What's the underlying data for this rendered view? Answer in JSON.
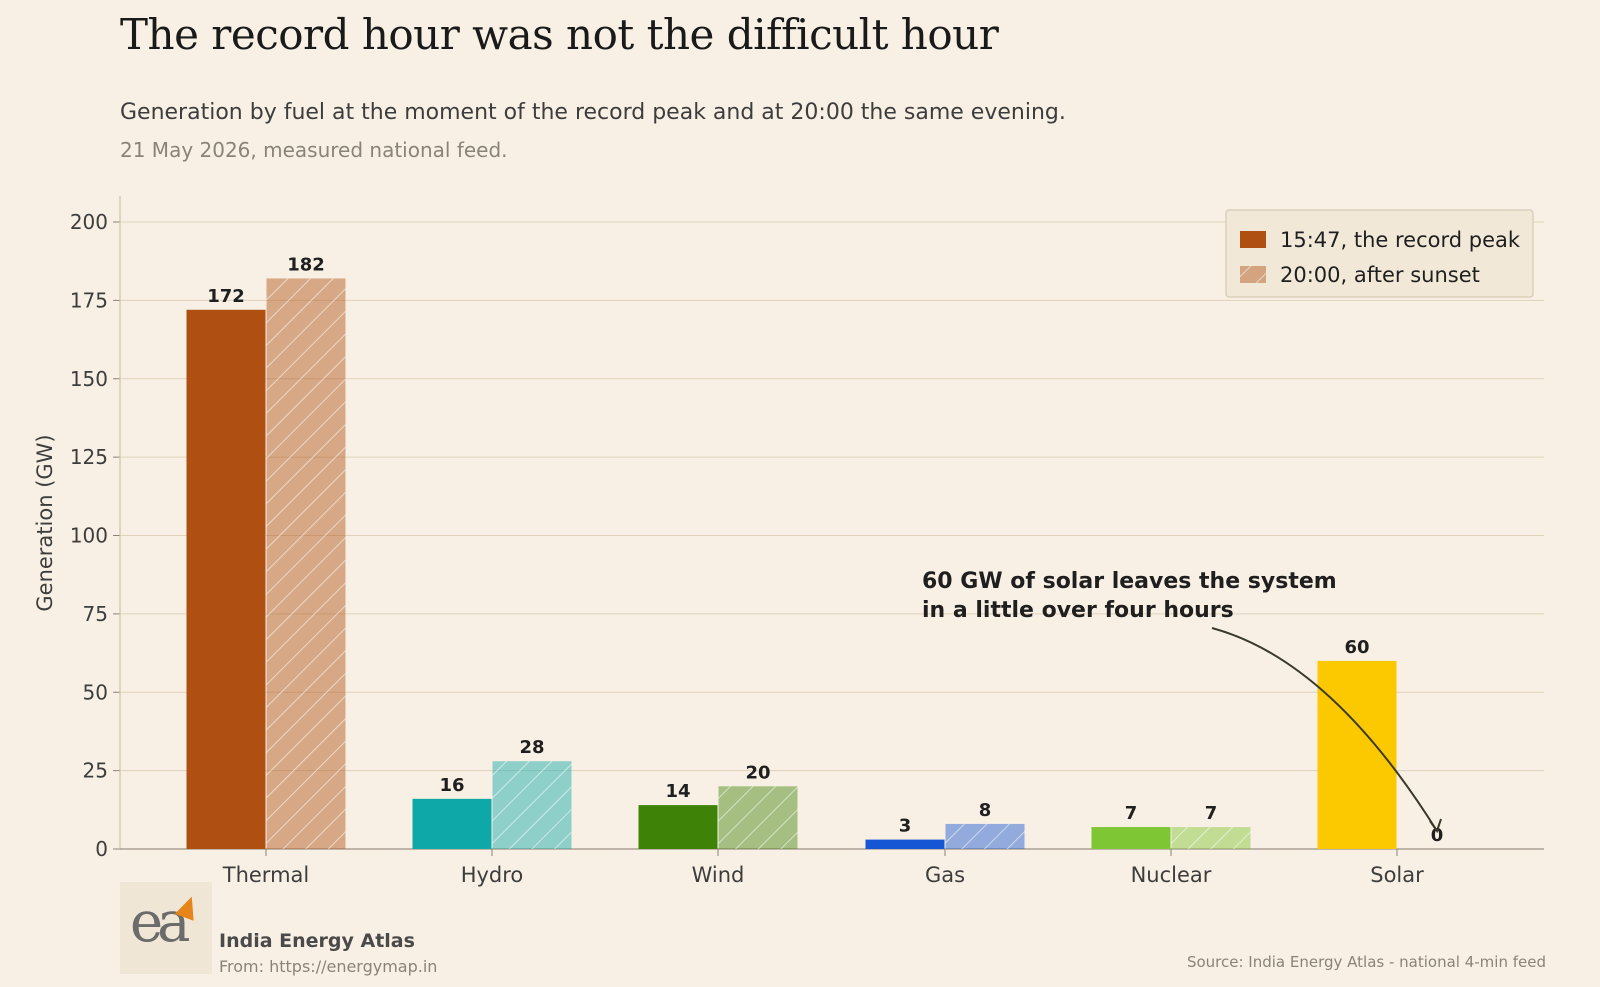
{
  "header": {
    "title": "The record hour was not the difficult hour",
    "subtitle": "Generation by fuel at the moment of the record peak and at 20:00 the same evening.",
    "caption": "21 May 2026, measured national feed."
  },
  "footer": {
    "brand_name": "India Energy Atlas",
    "brand_url": "From: https://energymap.in",
    "source": "Source: India Energy Atlas - national 4-min feed",
    "logo_text": "ea"
  },
  "chart_data": {
    "type": "bar",
    "ylabel": "Generation (GW)",
    "xlabel": "",
    "ylim": [
      0,
      200
    ],
    "yticks": [
      0,
      25,
      50,
      75,
      100,
      125,
      150,
      175,
      200
    ],
    "grid": true,
    "legend_position": "top-right",
    "categories": [
      "Thermal",
      "Hydro",
      "Wind",
      "Gas",
      "Nuclear",
      "Solar"
    ],
    "colors": [
      "#b04f12",
      "#0ea8a8",
      "#3f8208",
      "#1656d4",
      "#7ec634",
      "#fcc800"
    ],
    "series": [
      {
        "name": "15:47, the record peak",
        "values": [
          172,
          16,
          14,
          3,
          7,
          60
        ],
        "pattern": "solid"
      },
      {
        "name": "20:00, after sunset",
        "values": [
          182,
          28,
          20,
          8,
          7,
          0
        ],
        "pattern": "hatched"
      }
    ],
    "annotation": {
      "lines": [
        "60 GW of solar leaves the system",
        "in a little over four hours"
      ],
      "target_category": "Solar",
      "target_series": 1
    }
  }
}
